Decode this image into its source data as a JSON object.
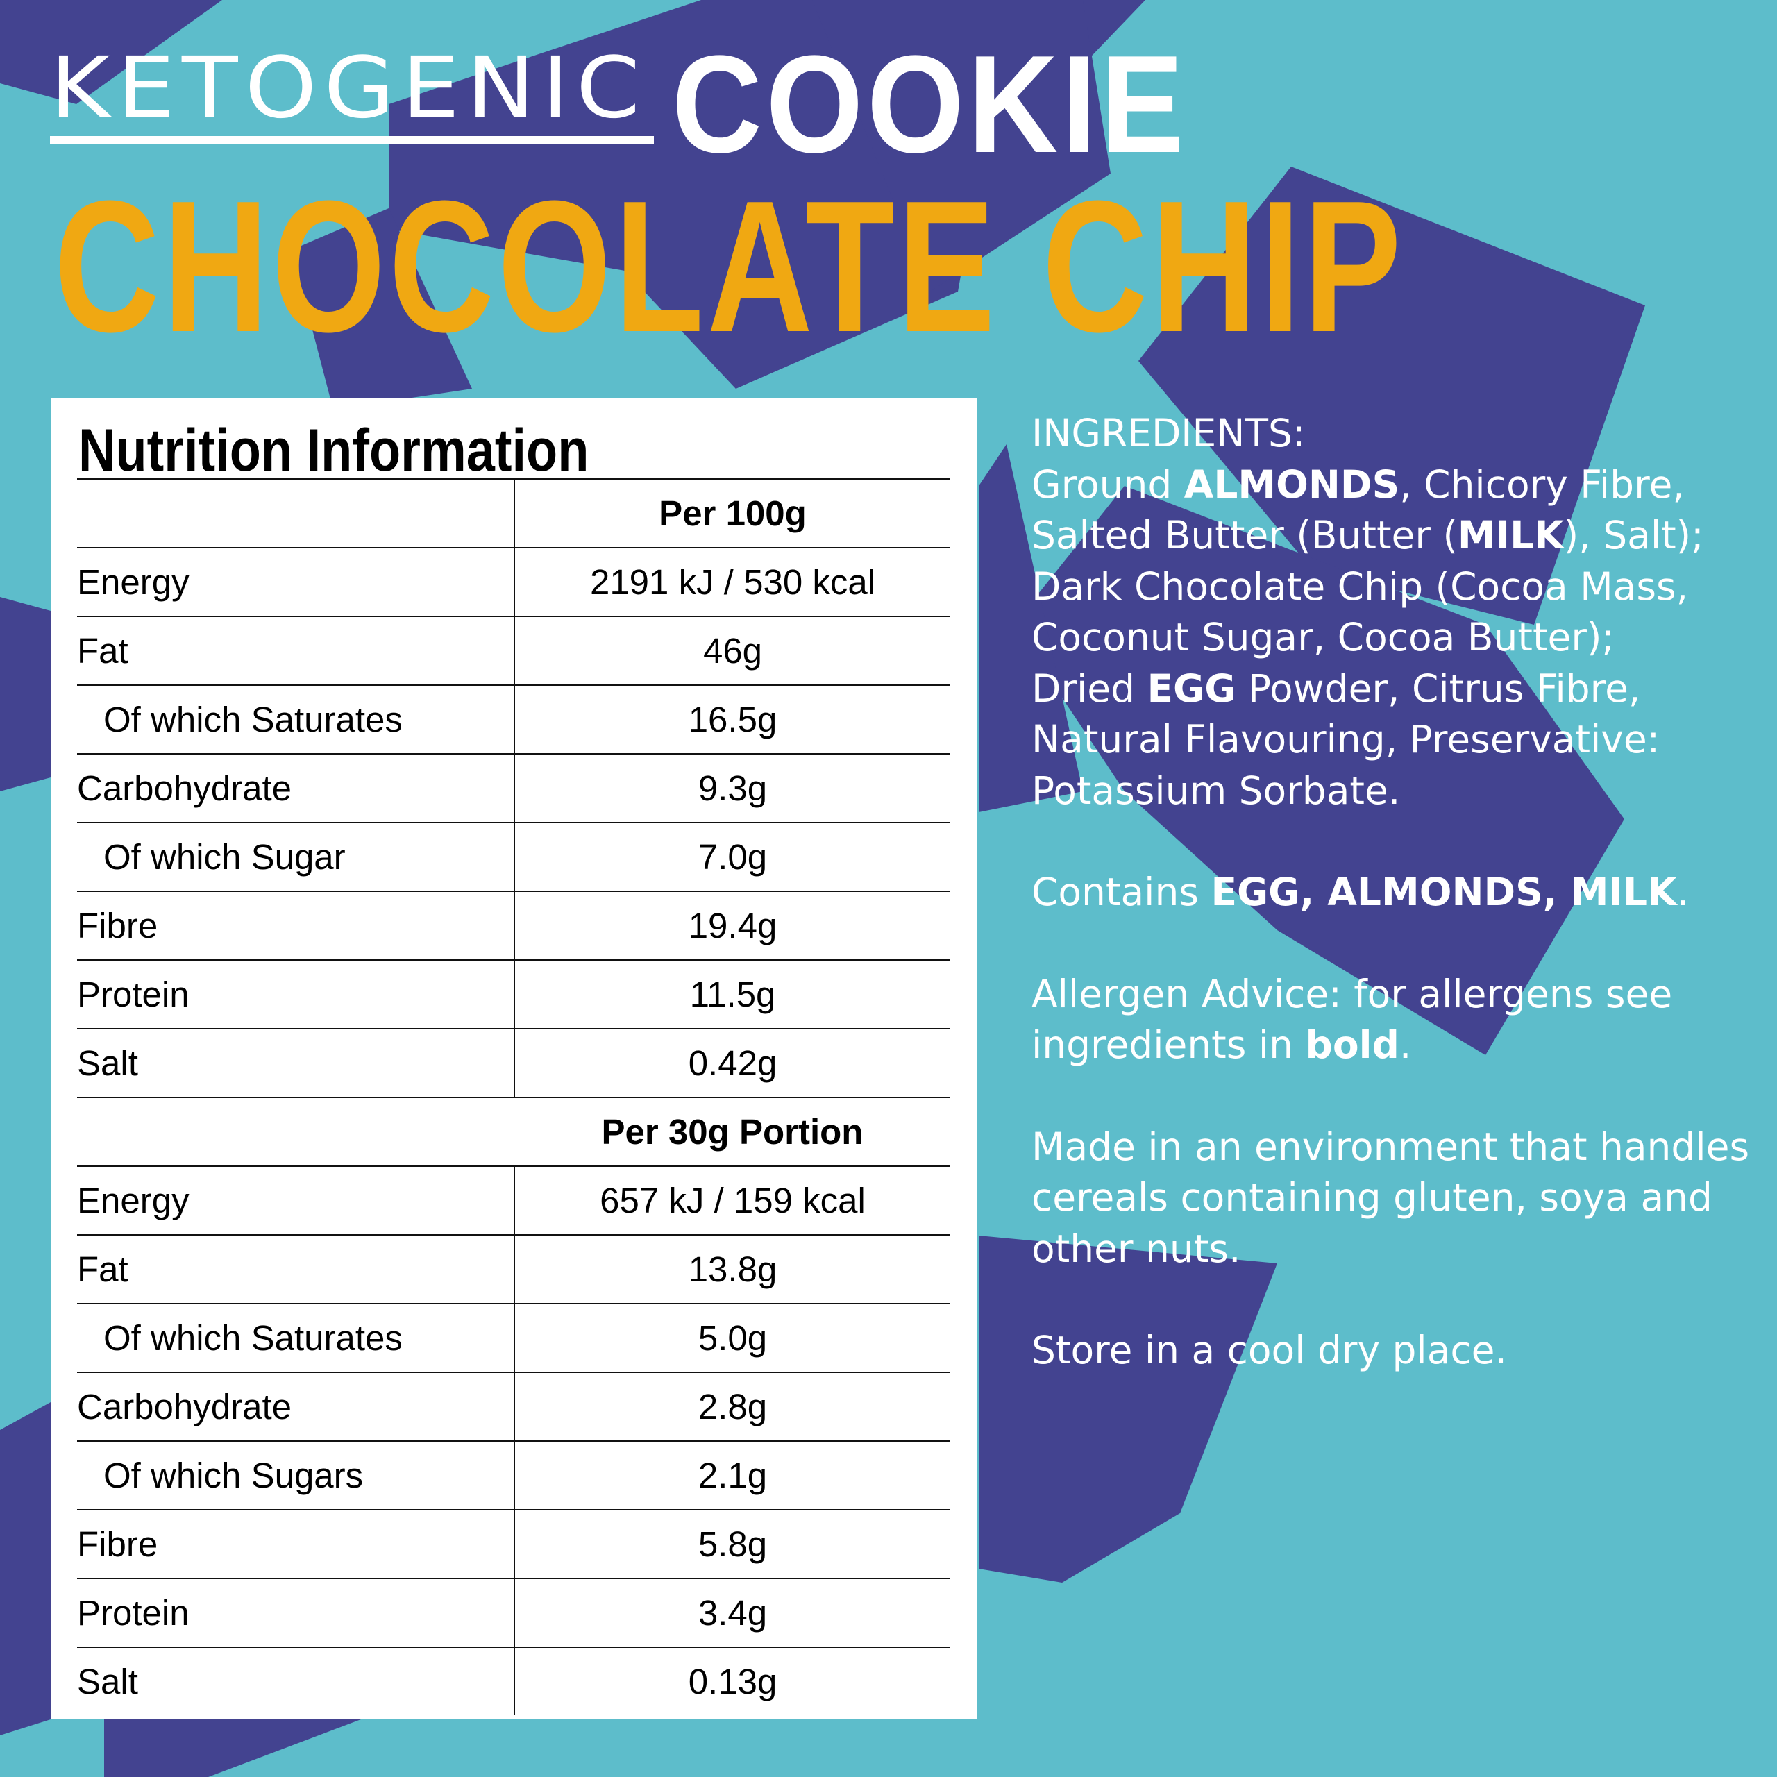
{
  "header": {
    "brand": "KETOGENIC",
    "product": "COOKIE",
    "flavour": "CHOCOLATE CHIP"
  },
  "colors": {
    "background": "#5dbdcb",
    "shapes": "#434390",
    "flavour": "#f0a812",
    "text": "#ffffff"
  },
  "nutrition": {
    "title": "Nutrition Information",
    "per100": {
      "heading": "Per 100g",
      "rows": [
        {
          "label": "Energy",
          "value": "2191 kJ / 530 kcal"
        },
        {
          "label": "Fat",
          "value": "46g"
        },
        {
          "label": "Of which Saturates",
          "value": "16.5g"
        },
        {
          "label": "Carbohydrate",
          "value": "9.3g"
        },
        {
          "label": "Of which Sugar",
          "value": "7.0g"
        },
        {
          "label": "Fibre",
          "value": "19.4g"
        },
        {
          "label": "Protein",
          "value": "11.5g"
        },
        {
          "label": "Salt",
          "value": "0.42g"
        }
      ]
    },
    "per30": {
      "heading": "Per 30g Portion",
      "rows": [
        {
          "label": "Energy",
          "value": "657 kJ / 159 kcal"
        },
        {
          "label": "Fat",
          "value": "13.8g"
        },
        {
          "label": "Of which Saturates",
          "value": "5.0g"
        },
        {
          "label": "Carbohydrate",
          "value": "2.8g"
        },
        {
          "label": "Of which Sugars",
          "value": "2.1g"
        },
        {
          "label": "Fibre",
          "value": "5.8g"
        },
        {
          "label": "Protein",
          "value": "3.4g"
        },
        {
          "label": "Salt",
          "value": "0.13g"
        }
      ]
    }
  },
  "ingredients": {
    "heading": "INGREDIENTS:",
    "t1": "Ground ",
    "b1": "ALMONDS",
    "t2": ", Chicory Fibre, Salted Butter (Butter (",
    "b2": "MILK",
    "t3": "), Salt); Dark Chocolate Chip (Cocoa Mass, Coconut Sugar, Cocoa Butter);",
    "t4": "Dried ",
    "b3": "EGG",
    "t5": " Powder, Citrus Fibre, Natural Flavouring, Preservative: Potassium Sorbate."
  },
  "contains": {
    "text": "Contains ",
    "bold": "EGG, ALMONDS, MILK",
    "end": "."
  },
  "allergen": {
    "text": "Allergen Advice: for allergens see ingredients in ",
    "bold": "bold",
    "end": "."
  },
  "environment": "Made in an environment that handles cereals containing gluten, soya and other nuts.",
  "storage": "Store in a cool dry place."
}
